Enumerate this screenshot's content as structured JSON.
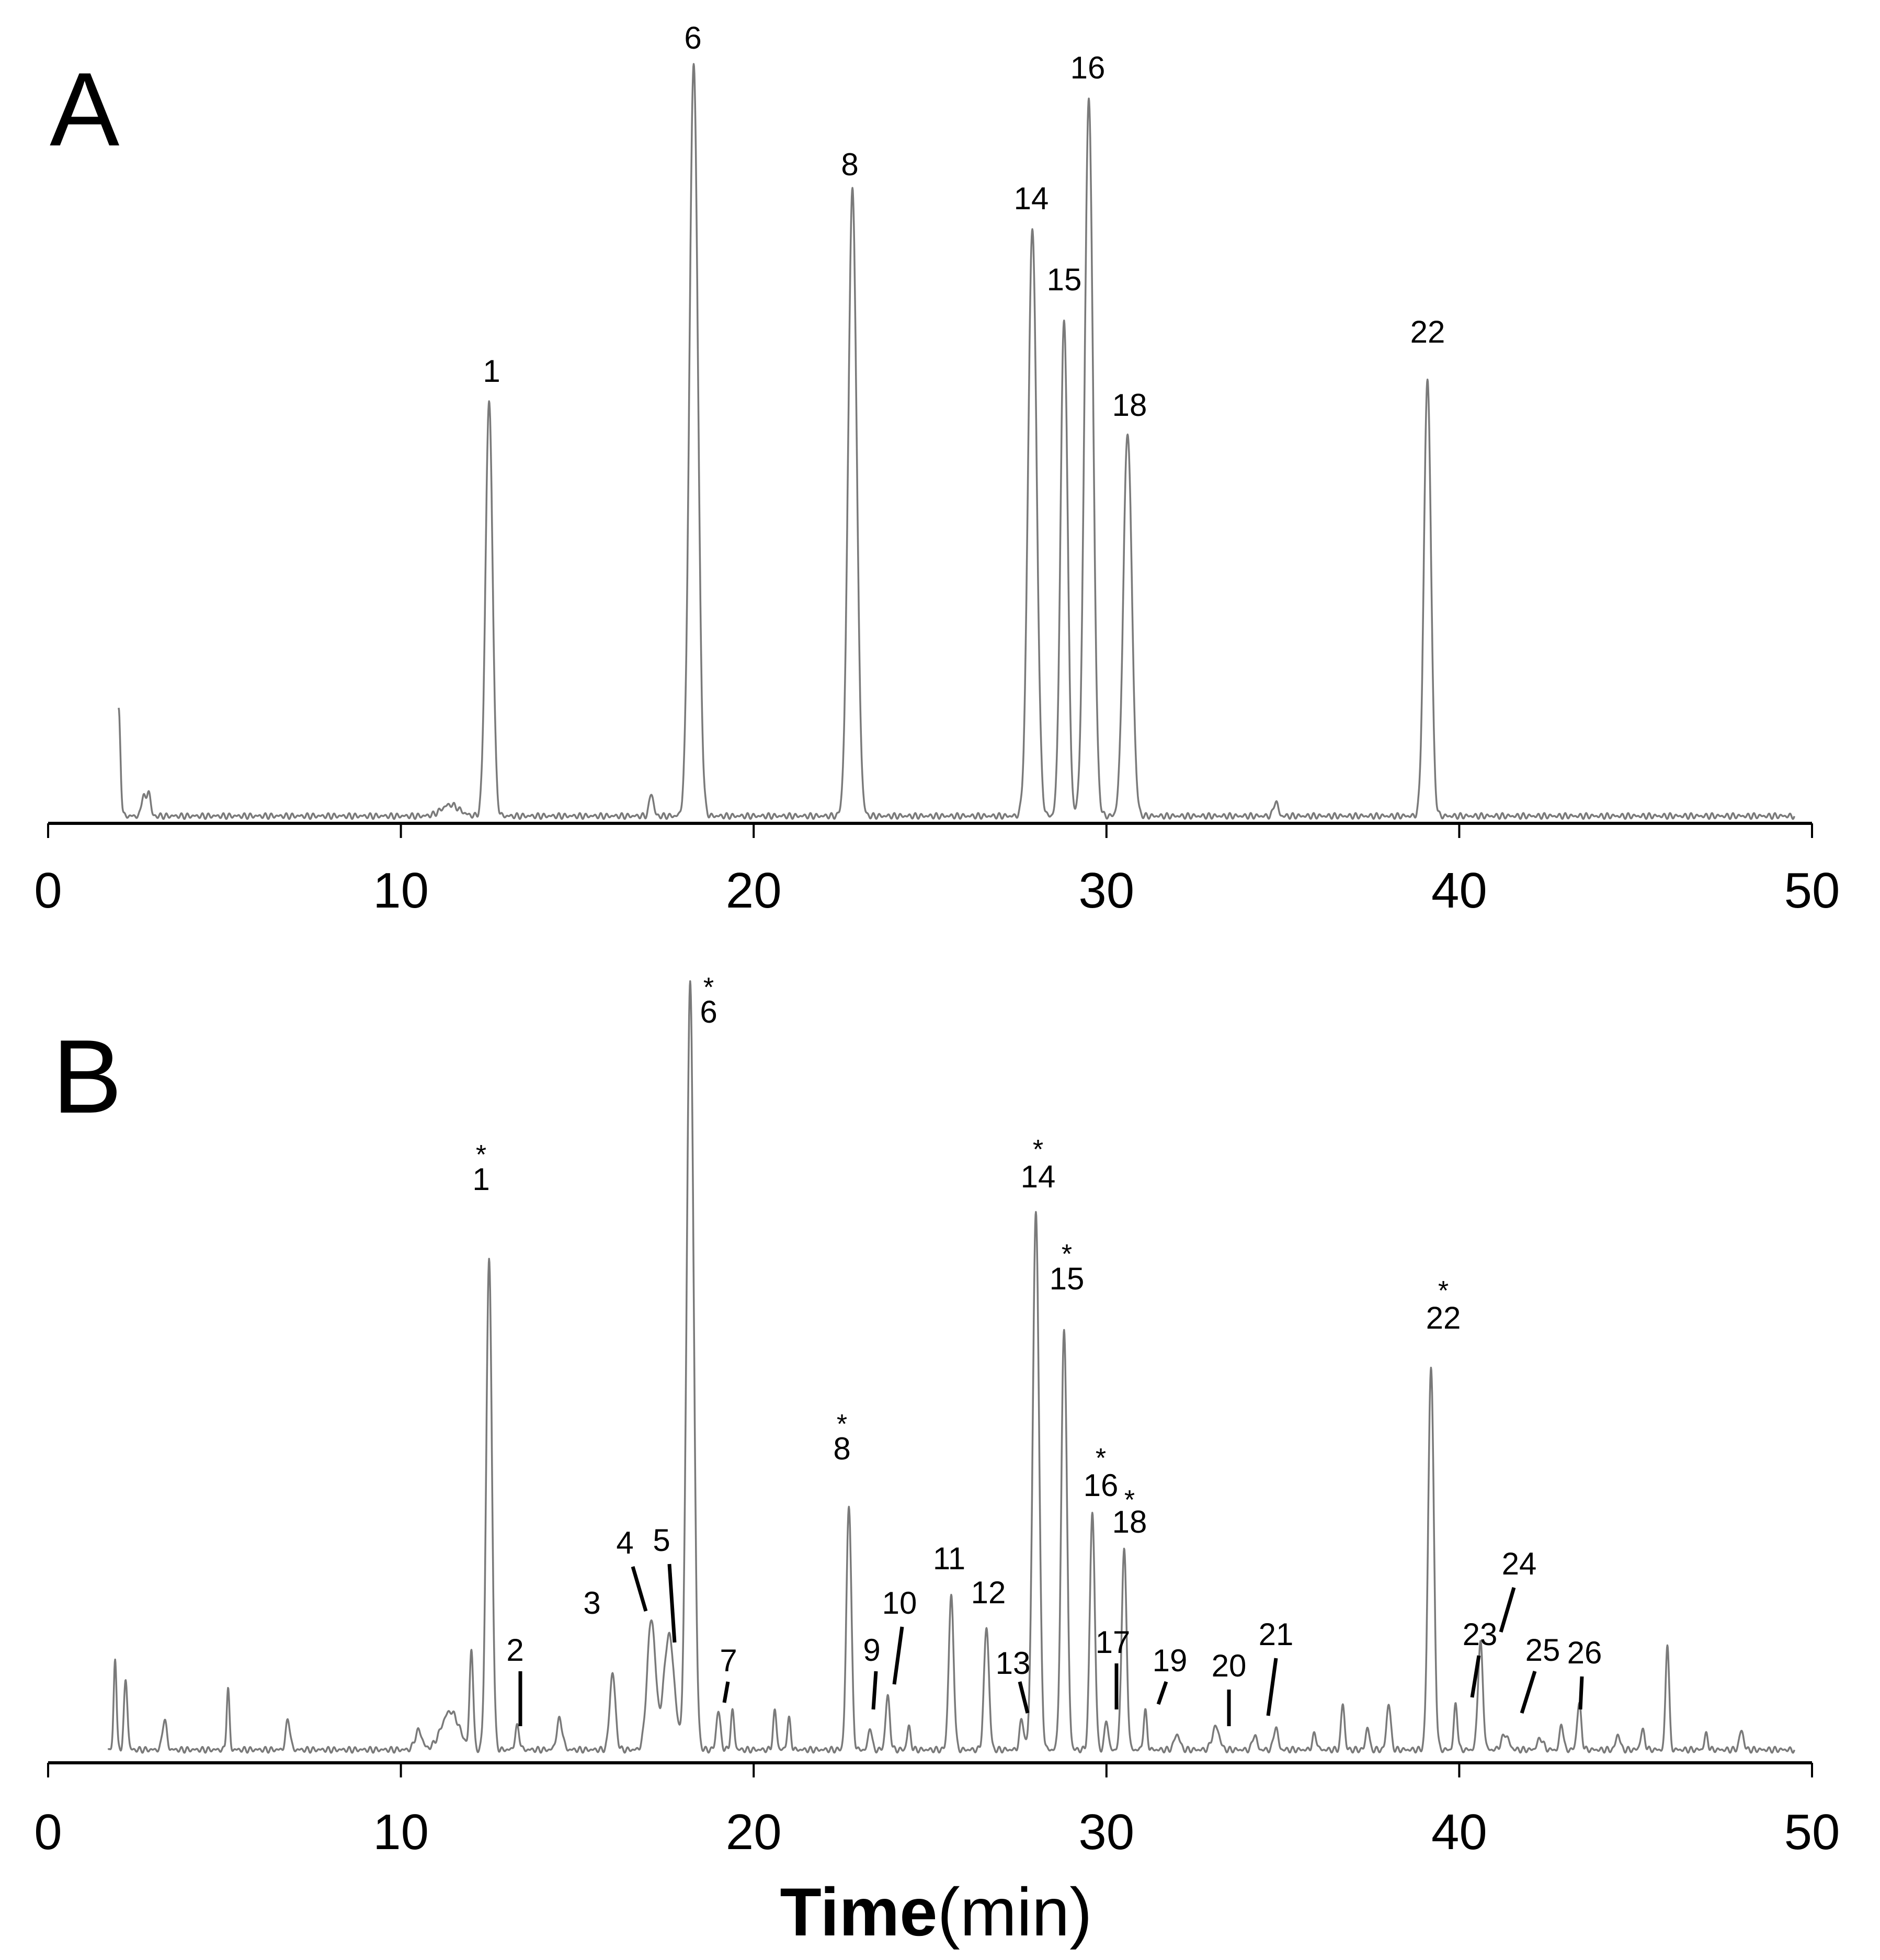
{
  "chart_data": [
    {
      "type": "line",
      "panel": "A",
      "xlabel": "",
      "ylabel": "",
      "xlim": [
        0,
        50
      ],
      "xticks": [
        0,
        10,
        20,
        30,
        40,
        50
      ],
      "grid": false,
      "baseline_start": 2,
      "baseline_end": 49.5,
      "peaks": [
        {
          "label": "",
          "t": 2.0,
          "h": 0.14,
          "w": 0.05
        },
        {
          "label": "",
          "t": 2.7,
          "h": 0.03,
          "w": 0.05
        },
        {
          "label": "",
          "t": 2.85,
          "h": 0.035,
          "w": 0.05
        },
        {
          "label": "",
          "t": 11.4,
          "h": 0.015,
          "w": 0.25
        },
        {
          "label": "1",
          "t": 12.5,
          "h": 0.55,
          "w": 0.1
        },
        {
          "label": "",
          "t": 17.1,
          "h": 0.03,
          "w": 0.06
        },
        {
          "label": "6",
          "t": 18.3,
          "h": 1.0,
          "w": 0.12
        },
        {
          "label": "8",
          "t": 22.8,
          "h": 0.83,
          "w": 0.12
        },
        {
          "label": "14",
          "t": 27.9,
          "h": 0.78,
          "w": 0.12
        },
        {
          "label": "15",
          "t": 28.8,
          "h": 0.66,
          "w": 0.1
        },
        {
          "label": "16",
          "t": 29.5,
          "h": 0.95,
          "w": 0.12
        },
        {
          "label": "18",
          "t": 30.6,
          "h": 0.51,
          "w": 0.12
        },
        {
          "label": "",
          "t": 34.8,
          "h": 0.02,
          "w": 0.06
        },
        {
          "label": "22",
          "t": 39.1,
          "h": 0.58,
          "w": 0.1
        }
      ]
    },
    {
      "type": "line",
      "panel": "B",
      "xlabel": "",
      "ylabel": "",
      "xlim": [
        0,
        50
      ],
      "xticks": [
        0,
        10,
        20,
        30,
        40,
        50
      ],
      "grid": false,
      "baseline_start": 1.7,
      "baseline_end": 49.5,
      "peaks": [
        {
          "label": "",
          "t": 1.9,
          "h": 0.12,
          "w": 0.04
        },
        {
          "label": "",
          "t": 2.2,
          "h": 0.09,
          "w": 0.05
        },
        {
          "label": "",
          "t": 3.3,
          "h": 0.04,
          "w": 0.06
        },
        {
          "label": "",
          "t": 5.1,
          "h": 0.08,
          "w": 0.04
        },
        {
          "label": "",
          "t": 6.8,
          "h": 0.04,
          "w": 0.06
        },
        {
          "label": "",
          "t": 10.5,
          "h": 0.025,
          "w": 0.1
        },
        {
          "label": "",
          "t": 11.4,
          "h": 0.05,
          "w": 0.25
        },
        {
          "label": "",
          "t": 12.0,
          "h": 0.13,
          "w": 0.05
        },
        {
          "label": "1",
          "t": 12.5,
          "h": 0.64,
          "w": 0.08
        },
        {
          "label": "2",
          "t": 13.3,
          "h": 0.03,
          "w": 0.06
        },
        {
          "label": "",
          "t": 14.5,
          "h": 0.04,
          "w": 0.08
        },
        {
          "label": "3",
          "t": 16.0,
          "h": 0.1,
          "w": 0.08
        },
        {
          "label": "4",
          "t": 17.1,
          "h": 0.17,
          "w": 0.12
        },
        {
          "label": "5",
          "t": 17.6,
          "h": 0.15,
          "w": 0.15
        },
        {
          "label": "6",
          "t": 18.2,
          "h": 1.0,
          "w": 0.1
        },
        {
          "label": "7",
          "t": 19.0,
          "h": 0.05,
          "w": 0.06
        },
        {
          "label": "",
          "t": 19.4,
          "h": 0.05,
          "w": 0.05
        },
        {
          "label": "",
          "t": 20.6,
          "h": 0.05,
          "w": 0.05
        },
        {
          "label": "",
          "t": 21.0,
          "h": 0.04,
          "w": 0.05
        },
        {
          "label": "8",
          "t": 22.7,
          "h": 0.32,
          "w": 0.07
        },
        {
          "label": "9",
          "t": 23.3,
          "h": 0.03,
          "w": 0.05
        },
        {
          "label": "10",
          "t": 23.8,
          "h": 0.07,
          "w": 0.06
        },
        {
          "label": "",
          "t": 24.4,
          "h": 0.03,
          "w": 0.05
        },
        {
          "label": "11",
          "t": 25.6,
          "h": 0.2,
          "w": 0.07
        },
        {
          "label": "12",
          "t": 26.6,
          "h": 0.16,
          "w": 0.07
        },
        {
          "label": "13",
          "t": 27.6,
          "h": 0.04,
          "w": 0.06
        },
        {
          "label": "14",
          "t": 28.0,
          "h": 0.7,
          "w": 0.09
        },
        {
          "label": "15",
          "t": 28.8,
          "h": 0.55,
          "w": 0.08
        },
        {
          "label": "16",
          "t": 29.6,
          "h": 0.31,
          "w": 0.07
        },
        {
          "label": "17",
          "t": 30.0,
          "h": 0.04,
          "w": 0.05
        },
        {
          "label": "18",
          "t": 30.5,
          "h": 0.26,
          "w": 0.07
        },
        {
          "label": "19",
          "t": 31.1,
          "h": 0.05,
          "w": 0.05
        },
        {
          "label": "",
          "t": 32.0,
          "h": 0.02,
          "w": 0.08
        },
        {
          "label": "20",
          "t": 33.1,
          "h": 0.03,
          "w": 0.1
        },
        {
          "label": "21",
          "t": 34.2,
          "h": 0.02,
          "w": 0.06
        },
        {
          "label": "",
          "t": 34.8,
          "h": 0.03,
          "w": 0.06
        },
        {
          "label": "",
          "t": 35.9,
          "h": 0.02,
          "w": 0.06
        },
        {
          "label": "",
          "t": 36.7,
          "h": 0.06,
          "w": 0.05
        },
        {
          "label": "",
          "t": 37.4,
          "h": 0.03,
          "w": 0.05
        },
        {
          "label": "",
          "t": 38.0,
          "h": 0.06,
          "w": 0.06
        },
        {
          "label": "22",
          "t": 39.2,
          "h": 0.5,
          "w": 0.08
        },
        {
          "label": "23",
          "t": 39.9,
          "h": 0.06,
          "w": 0.05
        },
        {
          "label": "24",
          "t": 40.6,
          "h": 0.14,
          "w": 0.07
        },
        {
          "label": "25",
          "t": 41.3,
          "h": 0.02,
          "w": 0.1
        },
        {
          "label": "",
          "t": 42.3,
          "h": 0.015,
          "w": 0.08
        },
        {
          "label": "26",
          "t": 42.9,
          "h": 0.035,
          "w": 0.05
        },
        {
          "label": "",
          "t": 43.4,
          "h": 0.06,
          "w": 0.06
        },
        {
          "label": "",
          "t": 44.5,
          "h": 0.02,
          "w": 0.06
        },
        {
          "label": "",
          "t": 45.2,
          "h": 0.025,
          "w": 0.06
        },
        {
          "label": "",
          "t": 45.9,
          "h": 0.14,
          "w": 0.05
        },
        {
          "label": "",
          "t": 47.0,
          "h": 0.02,
          "w": 0.05
        },
        {
          "label": "",
          "t": 48.0,
          "h": 0.025,
          "w": 0.06
        }
      ]
    }
  ],
  "panels": {
    "a": {
      "letter": "A"
    },
    "b": {
      "letter": "B"
    }
  },
  "peak_labels_a": [
    {
      "text": "1",
      "t": 12.5
    },
    {
      "text": "6",
      "t": 18.3
    },
    {
      "text": "8",
      "t": 22.8
    },
    {
      "text": "14",
      "t": 27.9
    },
    {
      "text": "15",
      "t": 28.8
    },
    {
      "text": "16",
      "t": 29.5
    },
    {
      "text": "18",
      "t": 30.6
    },
    {
      "text": "22",
      "t": 39.1
    }
  ],
  "peak_labels_b": [
    {
      "text": "1",
      "t": 12.5,
      "star": "*"
    },
    {
      "text": "6",
      "t": 18.2,
      "star": "*"
    },
    {
      "text": "8",
      "t": 22.7,
      "star": "*"
    },
    {
      "text": "14",
      "t": 28.0,
      "star": "*"
    },
    {
      "text": "15",
      "t": 28.8,
      "star": "*"
    },
    {
      "text": "16",
      "t": 29.6,
      "star": "*"
    },
    {
      "text": "18",
      "t": 30.5,
      "star": "*"
    },
    {
      "text": "22",
      "t": 39.2,
      "star": "*"
    },
    {
      "text": "2",
      "t": 13.3,
      "star": ""
    },
    {
      "text": "3",
      "t": 16.0,
      "star": ""
    },
    {
      "text": "4",
      "t": 17.1,
      "star": ""
    },
    {
      "text": "5",
      "t": 17.6,
      "star": ""
    },
    {
      "text": "7",
      "t": 19.0,
      "star": ""
    },
    {
      "text": "9",
      "t": 23.3,
      "star": ""
    },
    {
      "text": "10",
      "t": 23.8,
      "star": ""
    },
    {
      "text": "11",
      "t": 25.6,
      "star": ""
    },
    {
      "text": "12",
      "t": 26.6,
      "star": ""
    },
    {
      "text": "13",
      "t": 27.6,
      "star": ""
    },
    {
      "text": "17",
      "t": 30.0,
      "star": ""
    },
    {
      "text": "19",
      "t": 31.1,
      "star": ""
    },
    {
      "text": "20",
      "t": 33.1,
      "star": ""
    },
    {
      "text": "21",
      "t": 34.2,
      "star": ""
    },
    {
      "text": "23",
      "t": 39.9,
      "star": ""
    },
    {
      "text": "24",
      "t": 40.6,
      "star": ""
    },
    {
      "text": "25",
      "t": 41.3,
      "star": ""
    },
    {
      "text": "26",
      "t": 42.9,
      "star": ""
    }
  ],
  "x_axis_title": {
    "bold": "Time",
    "unit": "(min)"
  }
}
